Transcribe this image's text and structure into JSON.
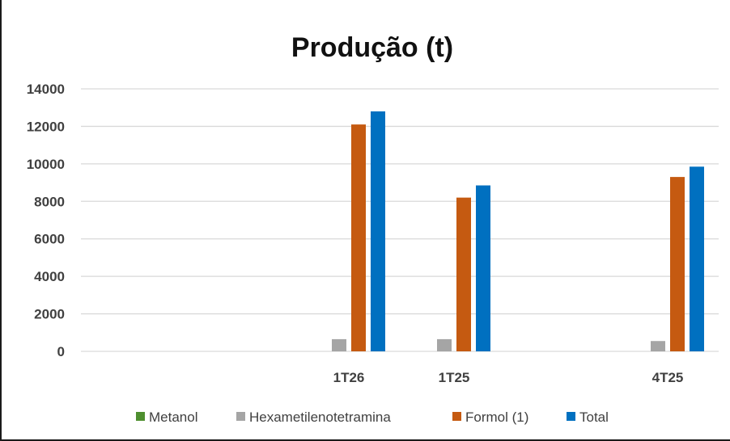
{
  "chart_data": {
    "type": "bar",
    "title": "Produção (t)",
    "xlabel": "",
    "ylabel": "",
    "ylim": [
      0,
      14000
    ],
    "yticks": [
      0,
      2000,
      4000,
      6000,
      8000,
      10000,
      12000,
      14000
    ],
    "grid": true,
    "legend_position": "bottom",
    "categories": [
      "1T26",
      "1T25",
      "4T25"
    ],
    "series": [
      {
        "name": "Metanol",
        "color": "#4e8f2f",
        "values": [
          0,
          0,
          0
        ]
      },
      {
        "name": "Hexametilenotetramina",
        "color": "#a5a5a5",
        "values": [
          650,
          650,
          550
        ]
      },
      {
        "name": "Formol (1)",
        "color": "#c55a11",
        "values": [
          12100,
          8200,
          9300
        ]
      },
      {
        "name": "Total",
        "color": "#0070c0",
        "values": [
          12800,
          8850,
          9850
        ]
      }
    ]
  }
}
